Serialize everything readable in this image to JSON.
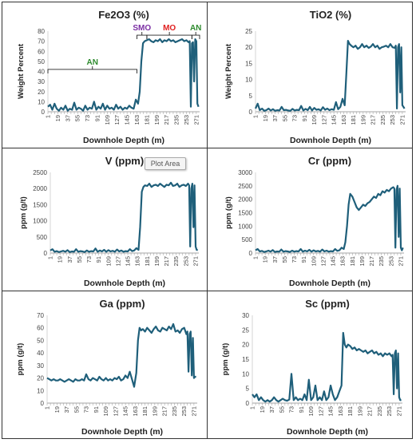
{
  "panels": [
    {
      "title": "Fe2O3 (%)",
      "ylabel": "Weight Percent",
      "xlabel": "Downhole Depth (m)",
      "ylim": [
        0,
        80
      ],
      "yticks": [
        0,
        10,
        20,
        30,
        40,
        50,
        60,
        70,
        80
      ],
      "annotations": [
        {
          "text": "AN",
          "color": "#2e8b2e"
        },
        {
          "text": "SMO",
          "color": "#7b2ea3"
        },
        {
          "text": "MO",
          "color": "#e02020"
        },
        {
          "text": "AN",
          "color": "#2e8b2e"
        }
      ]
    },
    {
      "title": "TiO2 (%)",
      "ylabel": "Weight Percent",
      "xlabel": "Downhole Depth (m)",
      "ylim": [
        0,
        25
      ],
      "yticks": [
        0,
        5,
        10,
        15,
        20,
        25
      ],
      "annotations": []
    },
    {
      "title": "V (ppm)",
      "ylabel": "ppm (g/t)",
      "xlabel": "Downhole Depth (m)",
      "ylim": [
        0,
        2500
      ],
      "yticks": [
        0,
        500,
        1000,
        1500,
        2000,
        2500
      ],
      "annotations": []
    },
    {
      "title": "Cr (ppm)",
      "ylabel": "ppm (g/t)",
      "xlabel": "Downhole Depth (m)",
      "ylim": [
        0,
        3000
      ],
      "yticks": [
        0,
        500,
        1000,
        1500,
        2000,
        2500,
        3000
      ],
      "annotations": []
    },
    {
      "title": "Ga (ppm)",
      "ylabel": "ppm (g/t)",
      "xlabel": "Downhole Depth (m)",
      "ylim": [
        0,
        70
      ],
      "yticks": [
        0,
        10,
        20,
        30,
        40,
        50,
        60,
        70
      ],
      "annotations": []
    },
    {
      "title": "Sc (ppm)",
      "ylabel": "ppm (g/t)",
      "xlabel": "Downhole Depth (m)",
      "ylim": [
        0,
        30
      ],
      "yticks": [
        0,
        5,
        10,
        15,
        20,
        25,
        30
      ],
      "annotations": []
    }
  ],
  "tooltip": "Plot Area",
  "chart_data": [
    {
      "type": "line",
      "title": "Fe2O3 (%)",
      "xlabel": "Downhole Depth (m)",
      "ylabel": "Weight Percent",
      "ylim": [
        0,
        80
      ],
      "x_ticks": [
        "1",
        "19",
        "37",
        "55",
        "73",
        "91",
        "109",
        "127",
        "145",
        "163",
        "181",
        "199",
        "217",
        "235",
        "253",
        "271"
      ],
      "grid": false,
      "line_color": "#1f5f7a",
      "x": [
        1,
        5,
        9,
        13,
        17,
        21,
        25,
        29,
        33,
        37,
        41,
        45,
        49,
        53,
        57,
        61,
        65,
        69,
        73,
        77,
        81,
        85,
        89,
        93,
        97,
        101,
        105,
        109,
        113,
        117,
        121,
        125,
        129,
        133,
        137,
        141,
        145,
        149,
        153,
        157,
        161,
        165,
        168,
        171,
        174,
        177,
        181,
        185,
        189,
        193,
        197,
        201,
        205,
        209,
        213,
        217,
        221,
        225,
        229,
        233,
        237,
        241,
        245,
        249,
        253,
        257,
        259,
        261,
        263,
        265,
        267,
        269,
        271,
        273,
        275
      ],
      "values": [
        5,
        7,
        2,
        8,
        3,
        1,
        4,
        2,
        6,
        1,
        3,
        2,
        9,
        2,
        4,
        3,
        1,
        6,
        2,
        4,
        3,
        10,
        2,
        5,
        3,
        8,
        2,
        6,
        3,
        4,
        2,
        7,
        3,
        5,
        2,
        4,
        3,
        6,
        4,
        3,
        12,
        8,
        20,
        50,
        68,
        70,
        71,
        72,
        70,
        69,
        71,
        70,
        72,
        69,
        71,
        70,
        72,
        70,
        71,
        69,
        70,
        71,
        72,
        70,
        71,
        69,
        70,
        5,
        68,
        69,
        30,
        72,
        70,
        8,
        5
      ]
    },
    {
      "type": "line",
      "title": "TiO2 (%)",
      "xlabel": "Downhole Depth (m)",
      "ylabel": "Weight Percent",
      "ylim": [
        0,
        25
      ],
      "x_ticks": [
        "1",
        "19",
        "37",
        "55",
        "73",
        "91",
        "109",
        "127",
        "145",
        "163",
        "181",
        "199",
        "217",
        "235",
        "253",
        "271"
      ],
      "grid": false,
      "line_color": "#1f5f7a",
      "x": [
        1,
        5,
        9,
        13,
        17,
        21,
        25,
        29,
        33,
        37,
        41,
        45,
        49,
        53,
        57,
        61,
        65,
        69,
        73,
        77,
        81,
        85,
        89,
        93,
        97,
        101,
        105,
        109,
        113,
        117,
        121,
        125,
        129,
        133,
        137,
        141,
        145,
        149,
        153,
        157,
        161,
        165,
        168,
        171,
        174,
        177,
        181,
        185,
        189,
        193,
        197,
        201,
        205,
        209,
        213,
        217,
        221,
        225,
        229,
        233,
        237,
        241,
        245,
        249,
        253,
        257,
        259,
        261,
        263,
        265,
        267,
        269,
        271,
        273,
        275
      ],
      "values": [
        1,
        2.5,
        0.5,
        1,
        0.3,
        0.5,
        1,
        0.4,
        0.8,
        0.3,
        0.5,
        0.4,
        1.5,
        0.5,
        0.6,
        0.4,
        0.3,
        0.9,
        0.4,
        0.6,
        0.5,
        1.8,
        0.4,
        0.9,
        0.5,
        1.5,
        0.4,
        1.2,
        0.6,
        0.8,
        0.4,
        1.4,
        0.6,
        1,
        0.5,
        0.8,
        0.6,
        3,
        0.8,
        1.5,
        4,
        2,
        12,
        22,
        21,
        20.5,
        20,
        20.5,
        19.5,
        20,
        21,
        20,
        20.5,
        19.8,
        20.2,
        21,
        20,
        20.5,
        19.5,
        20,
        20.2,
        20.5,
        20,
        21,
        20,
        19.8,
        20.5,
        1,
        20,
        21,
        6,
        20,
        2,
        1.5,
        1
      ]
    },
    {
      "type": "line",
      "title": "V (ppm)",
      "xlabel": "Downhole Depth (m)",
      "ylabel": "ppm (g/t)",
      "ylim": [
        0,
        2500
      ],
      "x_ticks": [
        "1",
        "19",
        "37",
        "55",
        "73",
        "91",
        "109",
        "127",
        "145",
        "163",
        "181",
        "199",
        "217",
        "235",
        "253",
        "271"
      ],
      "grid": false,
      "line_color": "#1f5f7a",
      "x": [
        1,
        5,
        9,
        13,
        17,
        21,
        25,
        29,
        33,
        37,
        41,
        45,
        49,
        53,
        57,
        61,
        65,
        69,
        73,
        77,
        81,
        85,
        89,
        93,
        97,
        101,
        105,
        109,
        113,
        117,
        121,
        125,
        129,
        133,
        137,
        141,
        145,
        149,
        153,
        157,
        161,
        165,
        168,
        171,
        174,
        177,
        181,
        185,
        189,
        193,
        197,
        201,
        205,
        209,
        213,
        217,
        221,
        225,
        229,
        233,
        237,
        241,
        245,
        249,
        253,
        257,
        259,
        261,
        263,
        265,
        267,
        269,
        271,
        273,
        275
      ],
      "values": [
        80,
        120,
        40,
        60,
        30,
        50,
        70,
        40,
        90,
        30,
        50,
        40,
        120,
        40,
        60,
        50,
        30,
        80,
        40,
        60,
        50,
        140,
        40,
        80,
        50,
        100,
        40,
        90,
        50,
        70,
        40,
        110,
        50,
        80,
        40,
        60,
        50,
        120,
        60,
        80,
        150,
        100,
        800,
        1900,
        2050,
        2100,
        2080,
        2150,
        2050,
        2100,
        2120,
        2080,
        2150,
        2100,
        2050,
        2120,
        2100,
        2180,
        2080,
        2100,
        2150,
        2050,
        2100,
        2120,
        2080,
        2150,
        2100,
        200,
        2000,
        2150,
        800,
        2100,
        200,
        100,
        90
      ]
    },
    {
      "type": "line",
      "title": "Cr (ppm)",
      "xlabel": "Downhole Depth (m)",
      "ylabel": "ppm (g/t)",
      "ylim": [
        0,
        3000
      ],
      "x_ticks": [
        "1",
        "19",
        "37",
        "55",
        "73",
        "91",
        "109",
        "127",
        "145",
        "163",
        "181",
        "199",
        "217",
        "235",
        "253",
        "271"
      ],
      "grid": false,
      "line_color": "#1f5f7a",
      "x": [
        1,
        5,
        9,
        13,
        17,
        21,
        25,
        29,
        33,
        37,
        41,
        45,
        49,
        53,
        57,
        61,
        65,
        69,
        73,
        77,
        81,
        85,
        89,
        93,
        97,
        101,
        105,
        109,
        113,
        117,
        121,
        125,
        129,
        133,
        137,
        141,
        145,
        149,
        153,
        157,
        161,
        165,
        168,
        171,
        174,
        177,
        181,
        185,
        189,
        193,
        197,
        201,
        205,
        209,
        213,
        217,
        221,
        225,
        229,
        233,
        237,
        241,
        245,
        249,
        253,
        257,
        259,
        261,
        263,
        265,
        267,
        269,
        271,
        273,
        275
      ],
      "values": [
        100,
        150,
        60,
        80,
        40,
        60,
        90,
        50,
        110,
        40,
        60,
        50,
        130,
        50,
        70,
        60,
        40,
        90,
        50,
        70,
        60,
        150,
        50,
        90,
        60,
        120,
        50,
        100,
        60,
        80,
        50,
        130,
        60,
        90,
        50,
        70,
        60,
        150,
        80,
        100,
        200,
        150,
        400,
        1000,
        1800,
        2200,
        2100,
        1900,
        1700,
        1600,
        1700,
        1800,
        1750,
        1850,
        1900,
        2000,
        2100,
        2050,
        2200,
        2150,
        2300,
        2250,
        2350,
        2300,
        2400,
        2450,
        2400,
        200,
        2350,
        2500,
        600,
        2400,
        200,
        100,
        200
      ]
    },
    {
      "type": "line",
      "title": "Ga (ppm)",
      "xlabel": "Downhole Depth (m)",
      "ylabel": "ppm (g/t)",
      "ylim": [
        0,
        70
      ],
      "x_ticks": [
        "1",
        "19",
        "37",
        "55",
        "73",
        "91",
        "109",
        "127",
        "145",
        "163",
        "181",
        "199",
        "217",
        "235",
        "253",
        "271"
      ],
      "grid": false,
      "line_color": "#1f5f7a",
      "x": [
        1,
        5,
        9,
        13,
        17,
        21,
        25,
        29,
        33,
        37,
        41,
        45,
        49,
        53,
        57,
        61,
        65,
        69,
        73,
        77,
        81,
        85,
        89,
        93,
        97,
        101,
        105,
        109,
        113,
        117,
        121,
        125,
        129,
        133,
        137,
        141,
        145,
        149,
        153,
        157,
        161,
        165,
        168,
        171,
        174,
        177,
        181,
        185,
        189,
        193,
        197,
        201,
        205,
        209,
        213,
        217,
        221,
        225,
        229,
        233,
        237,
        241,
        245,
        249,
        253,
        257,
        259,
        261,
        263,
        265,
        267,
        269,
        271,
        273,
        275
      ],
      "values": [
        20,
        19,
        18,
        19,
        18,
        18,
        19,
        18,
        17,
        18,
        19,
        18,
        17,
        19,
        18,
        18,
        19,
        18,
        23,
        19,
        18,
        20,
        19,
        18,
        21,
        19,
        18,
        20,
        18,
        19,
        18,
        20,
        19,
        21,
        18,
        19,
        22,
        20,
        25,
        19,
        13,
        24,
        50,
        60,
        58,
        59,
        57,
        60,
        58,
        56,
        59,
        61,
        58,
        57,
        60,
        59,
        58,
        61,
        59,
        63,
        57,
        58,
        56,
        59,
        60,
        55,
        57,
        25,
        55,
        57,
        22,
        52,
        20,
        21,
        21
      ]
    },
    {
      "type": "line",
      "title": "Sc (ppm)",
      "xlabel": "Downhole Depth (m)",
      "ylabel": "ppm (g/t)",
      "ylim": [
        0,
        30
      ],
      "x_ticks": [
        "1",
        "19",
        "37",
        "55",
        "73",
        "91",
        "109",
        "127",
        "145",
        "163",
        "181",
        "199",
        "217",
        "235",
        "253",
        "271"
      ],
      "grid": false,
      "line_color": "#1f5f7a",
      "x": [
        1,
        5,
        9,
        13,
        17,
        21,
        25,
        29,
        33,
        37,
        41,
        45,
        49,
        53,
        57,
        61,
        65,
        69,
        73,
        77,
        81,
        85,
        89,
        93,
        97,
        101,
        105,
        109,
        113,
        117,
        121,
        125,
        129,
        133,
        137,
        141,
        145,
        149,
        153,
        157,
        161,
        165,
        168,
        171,
        174,
        177,
        181,
        185,
        189,
        193,
        197,
        201,
        205,
        209,
        213,
        217,
        221,
        225,
        229,
        233,
        237,
        241,
        245,
        249,
        253,
        257,
        259,
        261,
        263,
        265,
        267,
        269,
        271,
        273,
        275
      ],
      "values": [
        3,
        2,
        3,
        1,
        2,
        1,
        0.5,
        1,
        0.5,
        1,
        2,
        1,
        0.5,
        1,
        1.5,
        1,
        0.8,
        1.2,
        10,
        1,
        2,
        1,
        1.5,
        1,
        3,
        1,
        8,
        1,
        2,
        6,
        1,
        2,
        1,
        4,
        1,
        2,
        6,
        3,
        1,
        2,
        4,
        6,
        24,
        20,
        19,
        20,
        19.5,
        18.5,
        19,
        18,
        18.5,
        18,
        17.5,
        18,
        17,
        17.5,
        18,
        17,
        17.5,
        16.5,
        17,
        16,
        17,
        16.5,
        17,
        16,
        16.5,
        3,
        17,
        18,
        5,
        17,
        2,
        1,
        1
      ]
    }
  ]
}
